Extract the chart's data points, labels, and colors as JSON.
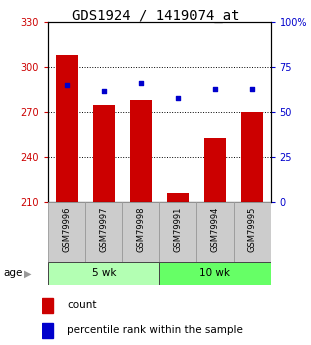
{
  "title": "GDS1924 / 1419074_at",
  "samples": [
    "GSM79996",
    "GSM79997",
    "GSM79998",
    "GSM79991",
    "GSM79994",
    "GSM79995"
  ],
  "counts": [
    308,
    275,
    278,
    216,
    253,
    270
  ],
  "percentile_ranks": [
    65,
    62,
    66,
    58,
    63,
    63
  ],
  "ylim_left": [
    210,
    330
  ],
  "ylim_right": [
    0,
    100
  ],
  "yticks_left": [
    210,
    240,
    270,
    300,
    330
  ],
  "yticks_right": [
    0,
    25,
    50,
    75,
    100
  ],
  "ytick_labels_right": [
    "0",
    "25",
    "50",
    "75",
    "100%"
  ],
  "groups": [
    {
      "label": "5 wk",
      "indices": [
        0,
        1,
        2
      ],
      "color": "#b3ffb3"
    },
    {
      "label": "10 wk",
      "indices": [
        3,
        4,
        5
      ],
      "color": "#66ff66"
    }
  ],
  "bar_color": "#cc0000",
  "dot_color": "#0000cc",
  "bar_width": 0.6,
  "background_color": "#ffffff",
  "legend_count_label": "count",
  "legend_pct_label": "percentile rank within the sample",
  "age_label": "age",
  "title_fontsize": 10,
  "tick_fontsize": 7,
  "sample_fontsize": 6,
  "legend_fontsize": 7.5
}
